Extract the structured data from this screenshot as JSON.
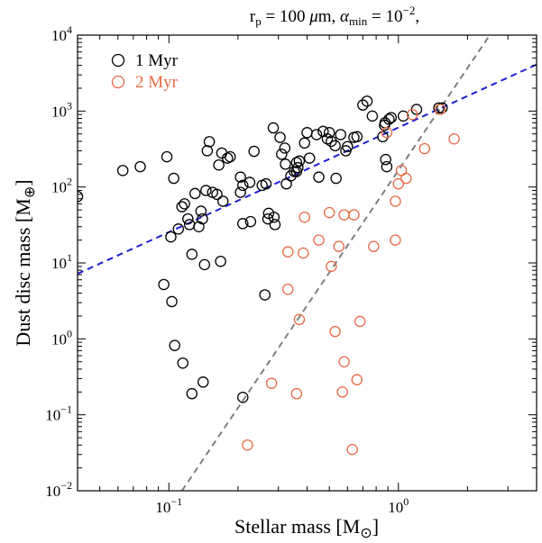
{
  "chart_data": {
    "type": "scatter",
    "title": "r_p = 100 μm, α_min = 10^−2,",
    "title_parts": {
      "rp_sym": "r",
      "rp_sub": "p",
      "rp_val": " = 100 ",
      "mu": "μ",
      "m_unit": "m, ",
      "alpha": "α",
      "alpha_sub": "min",
      "eq": " = 10",
      "exp": "−2",
      "comma": ","
    },
    "xlabel": "Stellar mass [M⊙]",
    "xlabel_parts": {
      "main": "Stellar mass [M",
      "sub": "⊙",
      "end": "]"
    },
    "ylabel": "Dust disc mass [M⊕]",
    "ylabel_parts": {
      "main": "Dust disc mass [M",
      "sub": "⊕",
      "end": "]"
    },
    "x_scale": "log",
    "y_scale": "log",
    "xlim": [
      0.04,
      4.0
    ],
    "ylim": [
      0.01,
      10000
    ],
    "x_ticks": [
      {
        "value": 0.1,
        "base": "10",
        "exp": "−1"
      },
      {
        "value": 1,
        "base": "10",
        "exp": "0"
      }
    ],
    "y_ticks": [
      {
        "value": 0.01,
        "base": "10",
        "exp": "−2"
      },
      {
        "value": 0.1,
        "base": "10",
        "exp": "−1"
      },
      {
        "value": 1,
        "base": "10",
        "exp": "0"
      },
      {
        "value": 10,
        "base": "10",
        "exp": "1"
      },
      {
        "value": 100,
        "base": "10",
        "exp": "2"
      },
      {
        "value": 1000,
        "base": "10",
        "exp": "3"
      },
      {
        "value": 10000,
        "base": "10",
        "exp": "4"
      }
    ],
    "legend_position": "top-left",
    "series": [
      {
        "name": "1 Myr",
        "color": "#000000",
        "points": [
          [
            0.04,
            75
          ],
          [
            0.063,
            165
          ],
          [
            0.075,
            185
          ],
          [
            0.098,
            250
          ],
          [
            0.105,
            130
          ],
          [
            0.102,
            22
          ],
          [
            0.095,
            5.2
          ],
          [
            0.103,
            3.1
          ],
          [
            0.106,
            0.82
          ],
          [
            0.115,
            0.48
          ],
          [
            0.126,
            0.19
          ],
          [
            0.141,
            0.27
          ],
          [
            0.21,
            0.17
          ],
          [
            0.262,
            3.8
          ],
          [
            0.11,
            28
          ],
          [
            0.114,
            55
          ],
          [
            0.117,
            60
          ],
          [
            0.121,
            38
          ],
          [
            0.123,
            32
          ],
          [
            0.13,
            82
          ],
          [
            0.135,
            30
          ],
          [
            0.138,
            48
          ],
          [
            0.14,
            38
          ],
          [
            0.126,
            13
          ],
          [
            0.143,
            9.5
          ],
          [
            0.168,
            10.5
          ],
          [
            0.147,
            300
          ],
          [
            0.15,
            395
          ],
          [
            0.145,
            90
          ],
          [
            0.155,
            85
          ],
          [
            0.162,
            80
          ],
          [
            0.172,
            65
          ],
          [
            0.17,
            280
          ],
          [
            0.165,
            195
          ],
          [
            0.185,
            250
          ],
          [
            0.18,
            240
          ],
          [
            0.205,
            135
          ],
          [
            0.21,
            105
          ],
          [
            0.205,
            85
          ],
          [
            0.21,
            33
          ],
          [
            0.227,
            35
          ],
          [
            0.225,
            115
          ],
          [
            0.235,
            295
          ],
          [
            0.255,
            105
          ],
          [
            0.265,
            110
          ],
          [
            0.272,
            45
          ],
          [
            0.27,
            38
          ],
          [
            0.285,
            600
          ],
          [
            0.287,
            40
          ],
          [
            0.29,
            32
          ],
          [
            0.305,
            450
          ],
          [
            0.31,
            270
          ],
          [
            0.32,
            325
          ],
          [
            0.322,
            200
          ],
          [
            0.325,
            110
          ],
          [
            0.34,
            140
          ],
          [
            0.352,
            160
          ],
          [
            0.36,
            210
          ],
          [
            0.36,
            160
          ],
          [
            0.365,
            180
          ],
          [
            0.37,
            220
          ],
          [
            0.39,
            380
          ],
          [
            0.4,
            520
          ],
          [
            0.41,
            240
          ],
          [
            0.44,
            490
          ],
          [
            0.45,
            135
          ],
          [
            0.47,
            540
          ],
          [
            0.49,
            430
          ],
          [
            0.5,
            520
          ],
          [
            0.51,
            400
          ],
          [
            0.53,
            350
          ],
          [
            0.535,
            130
          ],
          [
            0.56,
            490
          ],
          [
            0.59,
            300
          ],
          [
            0.6,
            340
          ],
          [
            0.64,
            450
          ],
          [
            0.66,
            460
          ],
          [
            0.7,
            1200
          ],
          [
            0.73,
            1350
          ],
          [
            0.77,
            860
          ],
          [
            0.855,
            460
          ],
          [
            0.87,
            650
          ],
          [
            0.875,
            700
          ],
          [
            0.88,
            230
          ],
          [
            0.89,
            185
          ],
          [
            0.91,
            780
          ],
          [
            0.93,
            820
          ],
          [
            1.05,
            860
          ],
          [
            1.2,
            1050
          ],
          [
            1.5,
            1100
          ],
          [
            1.55,
            1100
          ]
        ]
      },
      {
        "name": "2 Myr",
        "color": "#e86a45",
        "points": [
          [
            0.22,
            0.04
          ],
          [
            0.28,
            0.26
          ],
          [
            0.33,
            14
          ],
          [
            0.33,
            4.5
          ],
          [
            0.36,
            0.19
          ],
          [
            0.37,
            1.8
          ],
          [
            0.385,
            13.5
          ],
          [
            0.39,
            40
          ],
          [
            0.45,
            20
          ],
          [
            0.5,
            46
          ],
          [
            0.51,
            9
          ],
          [
            0.53,
            1.25
          ],
          [
            0.55,
            16.5
          ],
          [
            0.57,
            0.2
          ],
          [
            0.58,
            0.5
          ],
          [
            0.58,
            43
          ],
          [
            0.63,
            0.035
          ],
          [
            0.64,
            43
          ],
          [
            0.66,
            0.29
          ],
          [
            0.68,
            1.7
          ],
          [
            0.78,
            16.5
          ],
          [
            0.89,
            520
          ],
          [
            0.97,
            20
          ],
          [
            0.97,
            65
          ],
          [
            1.0,
            110
          ],
          [
            1.03,
            165
          ],
          [
            1.08,
            130
          ],
          [
            1.15,
            900
          ],
          [
            1.3,
            320
          ],
          [
            1.52,
            1050
          ],
          [
            1.75,
            430
          ]
        ]
      }
    ],
    "fit_lines": [
      {
        "color": "#1f1fd6",
        "style": "dashed",
        "x": [
          0.04,
          4.0
        ],
        "y": [
          7.2,
          4100
        ]
      },
      {
        "color": "#7f7f7f",
        "style": "dashed",
        "x": [
          0.114,
          2.5
        ],
        "y": [
          0.01,
          10000
        ]
      }
    ]
  }
}
